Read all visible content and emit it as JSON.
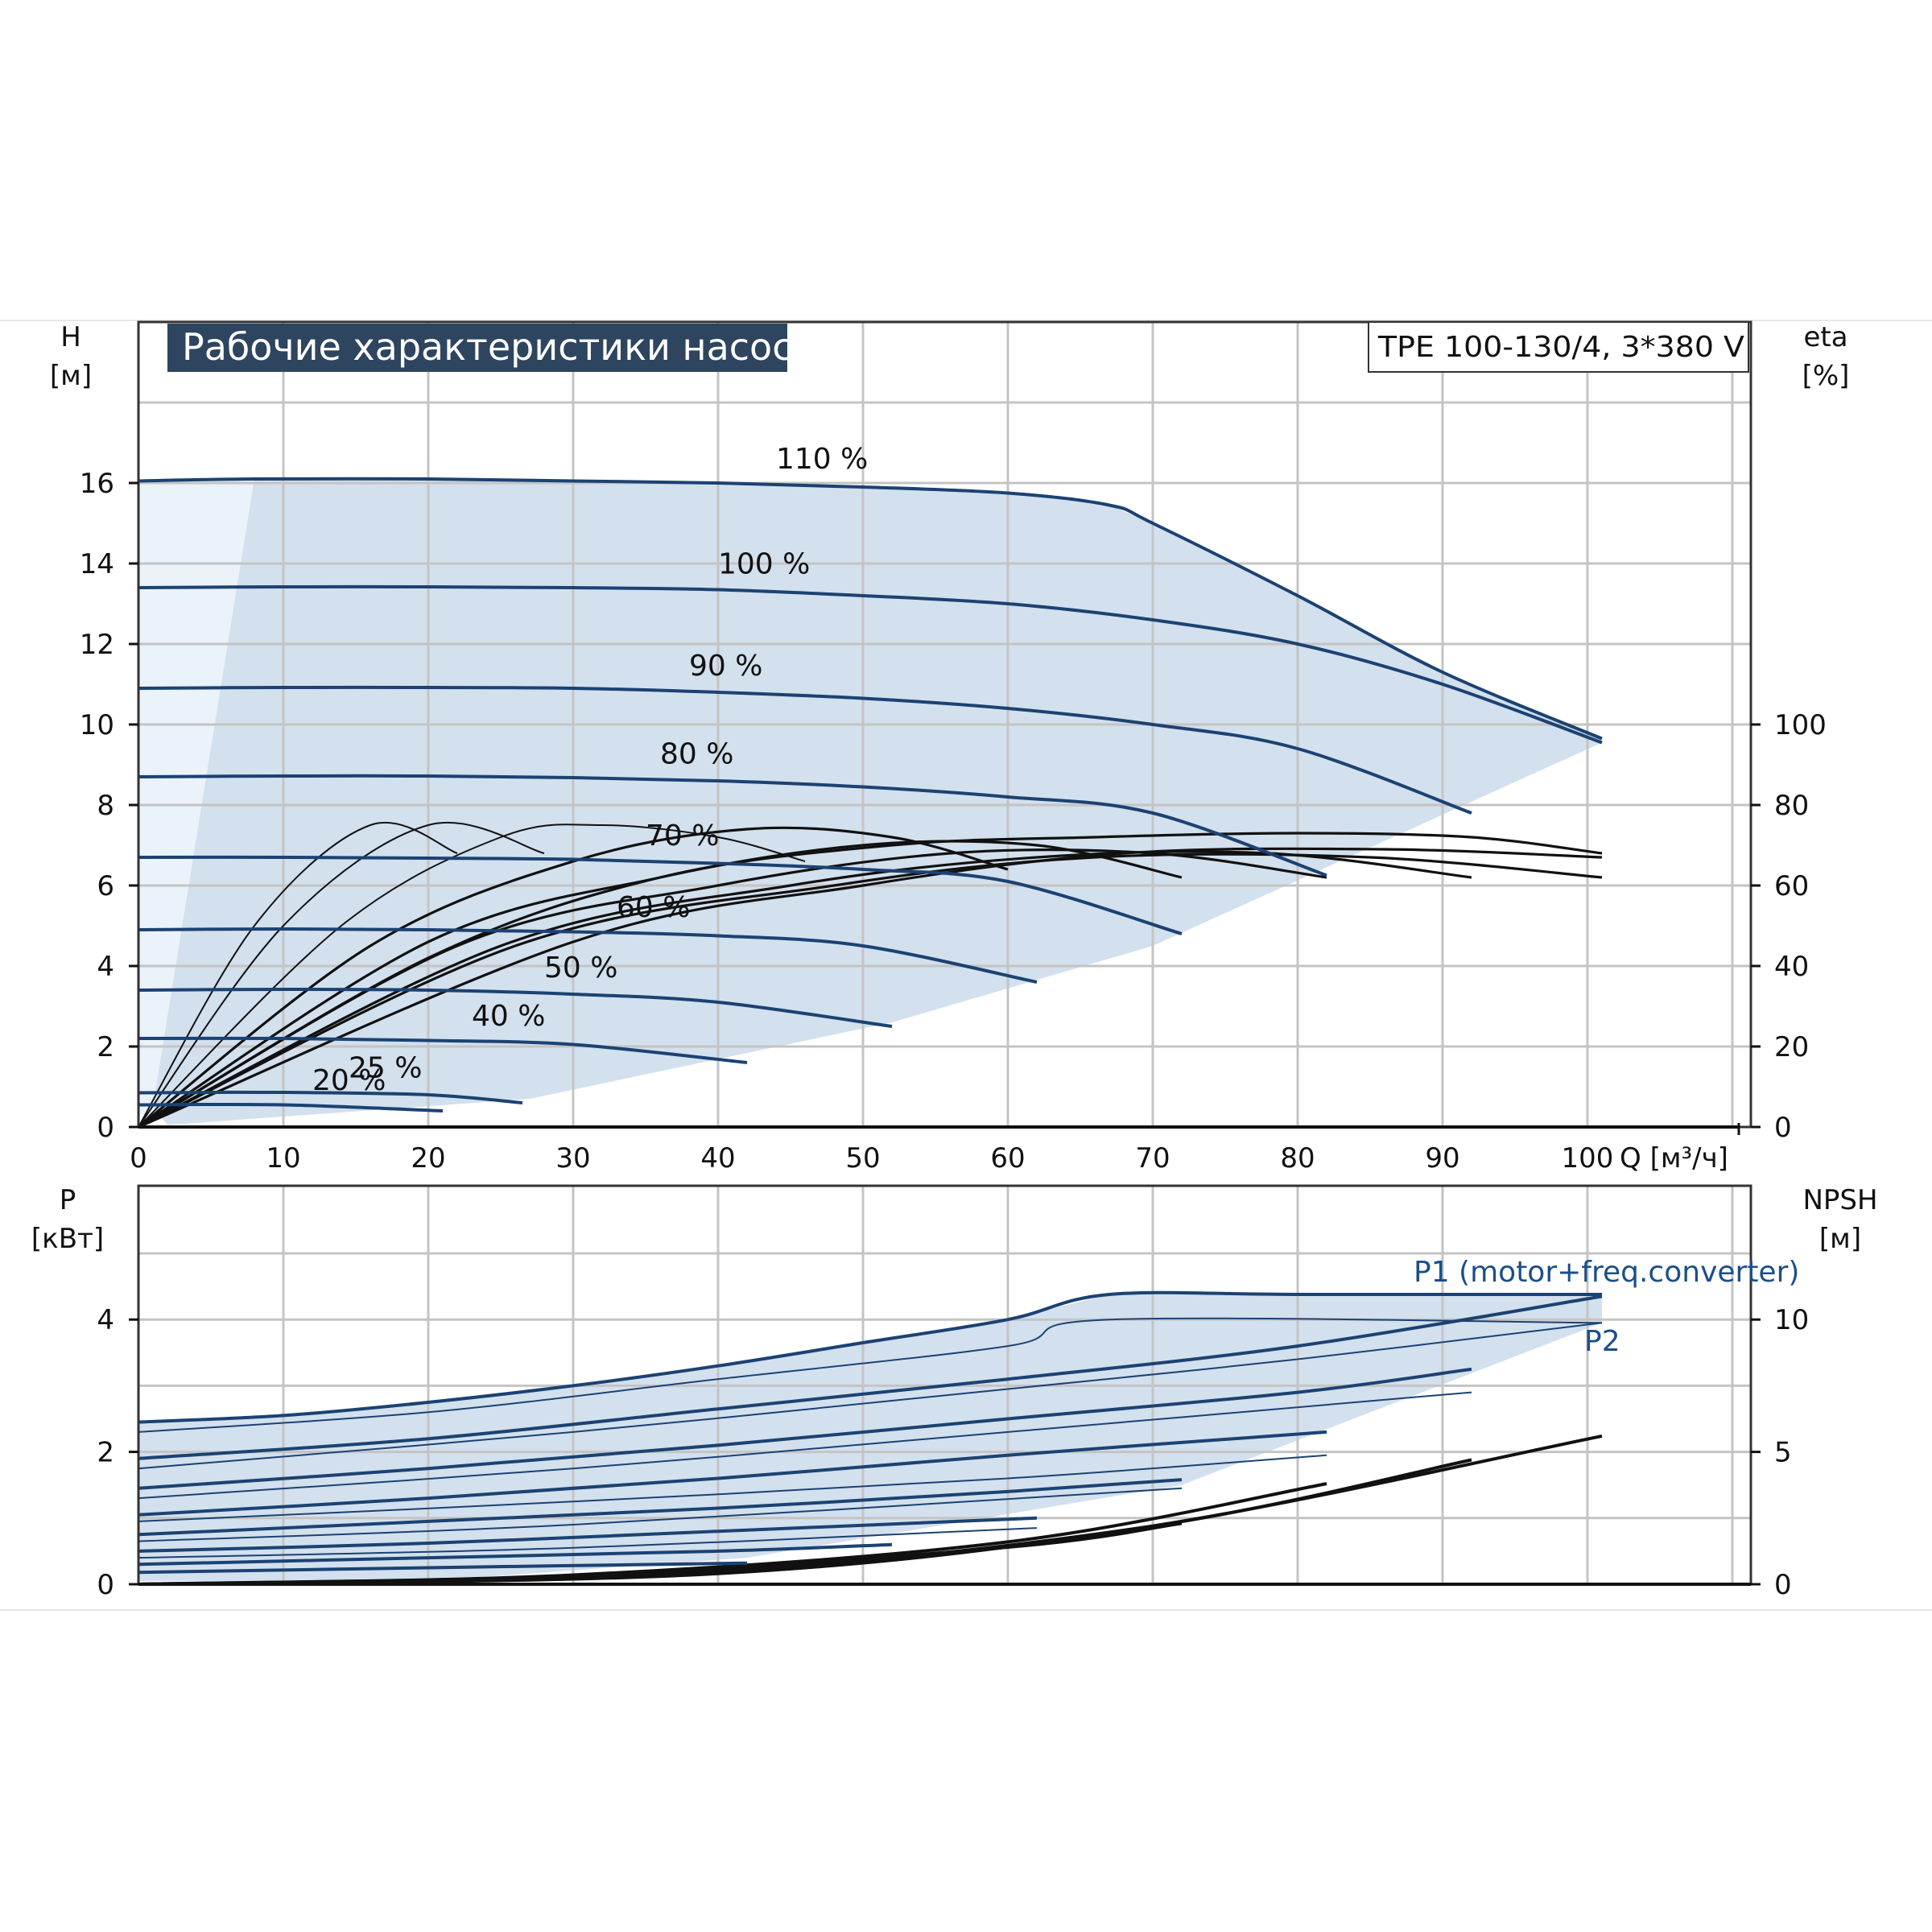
{
  "title": "Рабочие характеристики насоса",
  "model": "TPE 100-130/4, 3*380 V",
  "colors": {
    "curve": "#1b4272",
    "envelope_fill": "#d3e0ee",
    "envelope_light": "#eaf2fa",
    "grid": "#c4c4c4",
    "title_bg": "#2e4560",
    "efficiency": "#111111",
    "label_blue": "#1b4f8a"
  },
  "top_axes": {
    "y_left_title": "H",
    "y_left_unit": "[м]",
    "y_right_title": "eta",
    "y_right_unit": "[%]",
    "x_title": "Q [м³/ч]"
  },
  "bottom_axes": {
    "y_left_title": "P",
    "y_left_unit": "[кВт]",
    "y_right_title": "NPSH",
    "y_right_unit": "[м]"
  },
  "power_labels": {
    "p1": "P1 (motor+freq.converter)",
    "p2": "P2"
  },
  "chart_data": [
    {
      "type": "line",
      "panel": "head-efficiency",
      "x_ticks": [
        "0",
        "10",
        "20",
        "30",
        "40",
        "50",
        "60",
        "70",
        "80",
        "90",
        "100"
      ],
      "y_left_ticks": [
        "0",
        "2",
        "4",
        "6",
        "8",
        "10",
        "12",
        "14",
        "16"
      ],
      "y_right_ticks": [
        "0",
        "20",
        "40",
        "60",
        "80",
        "100"
      ],
      "xlim": [
        0,
        111
      ],
      "ylim": [
        0,
        18
      ],
      "y_right_range": [
        0,
        100
      ],
      "y_right_maps_to_head": [
        0,
        10
      ],
      "grid": true,
      "series": [
        {
          "name": "110 %",
          "points": [
            [
              0,
              16.05
            ],
            [
              8,
              16.1
            ],
            [
              20,
              16.1
            ],
            [
              30,
              16.05
            ],
            [
              40,
              16.0
            ],
            [
              50,
              15.9
            ],
            [
              60,
              15.75
            ],
            [
              67,
              15.45
            ],
            [
              70,
              15.0
            ],
            [
              80,
              13.2
            ],
            [
              90,
              11.3
            ],
            [
              101,
              9.65
            ]
          ]
        },
        {
          "name": "100 %",
          "points": [
            [
              0,
              13.4
            ],
            [
              10,
              13.42
            ],
            [
              20,
              13.42
            ],
            [
              30,
              13.4
            ],
            [
              40,
              13.35
            ],
            [
              50,
              13.2
            ],
            [
              60,
              13.0
            ],
            [
              70,
              12.6
            ],
            [
              80,
              12.0
            ],
            [
              90,
              11.0
            ],
            [
              101,
              9.55
            ]
          ]
        },
        {
          "name": "90 %",
          "points": [
            [
              0,
              10.9
            ],
            [
              10,
              10.92
            ],
            [
              20,
              10.92
            ],
            [
              30,
              10.9
            ],
            [
              40,
              10.8
            ],
            [
              50,
              10.65
            ],
            [
              60,
              10.4
            ],
            [
              70,
              10.0
            ],
            [
              80,
              9.4
            ],
            [
              92,
              7.8
            ]
          ]
        },
        {
          "name": "80 %",
          "points": [
            [
              0,
              8.7
            ],
            [
              10,
              8.72
            ],
            [
              20,
              8.72
            ],
            [
              30,
              8.68
            ],
            [
              40,
              8.6
            ],
            [
              50,
              8.45
            ],
            [
              60,
              8.2
            ],
            [
              70,
              7.8
            ],
            [
              82,
              6.25
            ]
          ]
        },
        {
          "name": "70 %",
          "points": [
            [
              0,
              6.7
            ],
            [
              10,
              6.7
            ],
            [
              20,
              6.68
            ],
            [
              30,
              6.65
            ],
            [
              40,
              6.55
            ],
            [
              50,
              6.4
            ],
            [
              60,
              6.1
            ],
            [
              72,
              4.8
            ]
          ]
        },
        {
          "name": "60 %",
          "points": [
            [
              0,
              4.9
            ],
            [
              10,
              4.92
            ],
            [
              20,
              4.9
            ],
            [
              30,
              4.85
            ],
            [
              40,
              4.75
            ],
            [
              50,
              4.5
            ],
            [
              62,
              3.6
            ]
          ]
        },
        {
          "name": "50 %",
          "points": [
            [
              0,
              3.4
            ],
            [
              10,
              3.42
            ],
            [
              20,
              3.4
            ],
            [
              30,
              3.3
            ],
            [
              40,
              3.1
            ],
            [
              52,
              2.5
            ]
          ]
        },
        {
          "name": "40 %",
          "points": [
            [
              0,
              2.2
            ],
            [
              10,
              2.2
            ],
            [
              20,
              2.15
            ],
            [
              30,
              2.05
            ],
            [
              42,
              1.6
            ]
          ]
        },
        {
          "name": "25 %",
          "points": [
            [
              0,
              0.85
            ],
            [
              10,
              0.86
            ],
            [
              20,
              0.8
            ],
            [
              26.5,
              0.6
            ]
          ]
        },
        {
          "name": "20 %",
          "points": [
            [
              0,
              0.55
            ],
            [
              10,
              0.55
            ],
            [
              21,
              0.4
            ]
          ]
        }
      ],
      "efficiency_curves_percent": [
        [
          [
            0,
            0
          ],
          [
            8,
            50
          ],
          [
            16,
            75
          ],
          [
            22,
            68
          ]
        ],
        [
          [
            0,
            0
          ],
          [
            10,
            50
          ],
          [
            20,
            75
          ],
          [
            28,
            68
          ]
        ],
        [
          [
            0,
            0
          ],
          [
            14,
            50
          ],
          [
            25,
            72
          ],
          [
            32,
            75
          ],
          [
            40,
            72
          ],
          [
            46,
            66
          ]
        ],
        [
          [
            0,
            0
          ],
          [
            16,
            45
          ],
          [
            30,
            66
          ],
          [
            42,
            74
          ],
          [
            52,
            72
          ],
          [
            60,
            64
          ]
        ],
        [
          [
            0,
            0
          ],
          [
            20,
            46
          ],
          [
            36,
            62
          ],
          [
            50,
            70
          ],
          [
            62,
            70
          ],
          [
            72,
            62
          ]
        ],
        [
          [
            0,
            0
          ],
          [
            22,
            45
          ],
          [
            40,
            60
          ],
          [
            56,
            68
          ],
          [
            70,
            68
          ],
          [
            82,
            62
          ]
        ],
        [
          [
            0,
            0
          ],
          [
            25,
            45
          ],
          [
            45,
            60
          ],
          [
            62,
            67
          ],
          [
            78,
            68
          ],
          [
            92,
            62
          ]
        ],
        [
          [
            0,
            0
          ],
          [
            26,
            45
          ],
          [
            48,
            60
          ],
          [
            66,
            67
          ],
          [
            85,
            67
          ],
          [
            101,
            62
          ]
        ],
        [
          [
            0,
            0
          ],
          [
            30,
            46
          ],
          [
            50,
            60
          ],
          [
            68,
            68
          ],
          [
            86,
            69
          ],
          [
            101,
            67
          ]
        ],
        [
          [
            0,
            0
          ],
          [
            20,
            42
          ],
          [
            36,
            62
          ],
          [
            52,
            70
          ],
          [
            66,
            72
          ],
          [
            80,
            73
          ],
          [
            92,
            72
          ],
          [
            101,
            68
          ]
        ]
      ]
    },
    {
      "type": "line",
      "panel": "power-npsh",
      "y_left_ticks": [
        "0",
        "2",
        "4"
      ],
      "y_right_ticks": [
        "0",
        "5",
        "10"
      ],
      "xlim": [
        0,
        111
      ],
      "ylim": [
        0,
        5.2
      ],
      "y_right_range": [
        0,
        10
      ],
      "y_right_maps_to_power": [
        0,
        4
      ],
      "grid": true,
      "p1_series": [
        [
          [
            0,
            2.45
          ],
          [
            10,
            2.55
          ],
          [
            20,
            2.75
          ],
          [
            30,
            3.0
          ],
          [
            40,
            3.3
          ],
          [
            50,
            3.65
          ],
          [
            60,
            4.0
          ],
          [
            67,
            4.38
          ],
          [
            80,
            4.38
          ],
          [
            101,
            4.38
          ]
        ],
        [
          [
            0,
            1.9
          ],
          [
            20,
            2.2
          ],
          [
            40,
            2.65
          ],
          [
            60,
            3.1
          ],
          [
            80,
            3.6
          ],
          [
            101,
            4.35
          ]
        ],
        [
          [
            0,
            1.45
          ],
          [
            20,
            1.75
          ],
          [
            40,
            2.1
          ],
          [
            60,
            2.5
          ],
          [
            80,
            2.9
          ],
          [
            92,
            3.25
          ]
        ],
        [
          [
            0,
            1.05
          ],
          [
            20,
            1.3
          ],
          [
            40,
            1.6
          ],
          [
            60,
            1.95
          ],
          [
            82,
            2.3
          ]
        ],
        [
          [
            0,
            0.75
          ],
          [
            20,
            0.95
          ],
          [
            40,
            1.15
          ],
          [
            60,
            1.4
          ],
          [
            72,
            1.58
          ]
        ],
        [
          [
            0,
            0.5
          ],
          [
            20,
            0.62
          ],
          [
            40,
            0.8
          ],
          [
            62,
            1.0
          ]
        ],
        [
          [
            0,
            0.3
          ],
          [
            20,
            0.4
          ],
          [
            40,
            0.5
          ],
          [
            52,
            0.6
          ]
        ],
        [
          [
            0,
            0.18
          ],
          [
            20,
            0.25
          ],
          [
            42,
            0.32
          ]
        ]
      ],
      "p2_series": [
        [
          [
            0,
            2.3
          ],
          [
            20,
            2.6
          ],
          [
            40,
            3.1
          ],
          [
            60,
            3.6
          ],
          [
            67,
            4.0
          ],
          [
            101,
            3.95
          ]
        ],
        [
          [
            0,
            1.75
          ],
          [
            30,
            2.3
          ],
          [
            60,
            2.95
          ],
          [
            80,
            3.4
          ],
          [
            101,
            3.95
          ]
        ],
        [
          [
            0,
            1.3
          ],
          [
            30,
            1.75
          ],
          [
            60,
            2.3
          ],
          [
            92,
            2.9
          ]
        ],
        [
          [
            0,
            0.95
          ],
          [
            30,
            1.25
          ],
          [
            60,
            1.6
          ],
          [
            82,
            1.95
          ]
        ],
        [
          [
            0,
            0.65
          ],
          [
            30,
            0.9
          ],
          [
            72,
            1.45
          ]
        ],
        [
          [
            0,
            0.4
          ],
          [
            30,
            0.55
          ],
          [
            62,
            0.85
          ]
        ]
      ],
      "npsh_series_m": [
        [
          [
            0,
            0
          ],
          [
            30,
            0.3
          ],
          [
            60,
            1.4
          ],
          [
            72,
            2.3
          ]
        ],
        [
          [
            0,
            0
          ],
          [
            30,
            0.35
          ],
          [
            60,
            1.6
          ],
          [
            82,
            3.8
          ]
        ],
        [
          [
            0,
            0
          ],
          [
            40,
            0.5
          ],
          [
            70,
            2.2
          ],
          [
            92,
            4.7
          ]
        ],
        [
          [
            0,
            0
          ],
          [
            40,
            0.4
          ],
          [
            70,
            2.2
          ],
          [
            101,
            5.6
          ]
        ]
      ]
    }
  ]
}
